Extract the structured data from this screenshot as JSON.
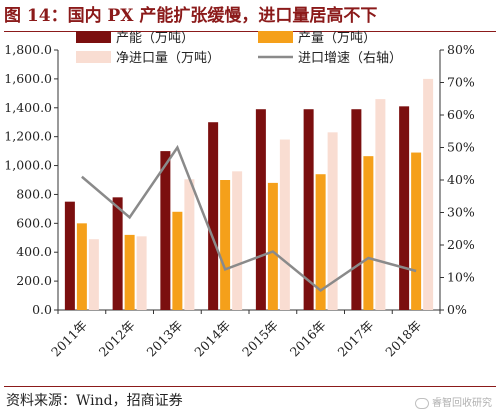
{
  "figure_title": "图 14：国内 PX 产能扩张缓慢，进口量居高不下",
  "source": "资料来源：Wind，招商证券",
  "watermark": "睿智回收研究",
  "colors": {
    "capacity": "#7b0f0f",
    "output": "#f5a01a",
    "net_import": "#f9ddd2",
    "import_growth": "#8a8a8a",
    "title": "#8b1a1a"
  },
  "chart_data": {
    "type": "bar",
    "categories": [
      "2011年",
      "2012年",
      "2013年",
      "2014年",
      "2015年",
      "2016年",
      "2017年",
      "2018年"
    ],
    "series": [
      {
        "name": "产能（万吨）",
        "type": "bar",
        "axis": "left",
        "values": [
          750,
          780,
          1100,
          1300,
          1390,
          1390,
          1390,
          1410
        ]
      },
      {
        "name": "产量（万吨）",
        "type": "bar",
        "axis": "left",
        "values": [
          600,
          520,
          680,
          900,
          880,
          940,
          1065,
          1090
        ]
      },
      {
        "name": "净进口量（万吨）",
        "type": "bar",
        "axis": "left",
        "values": [
          490,
          510,
          905,
          960,
          1180,
          1230,
          1460,
          1600
        ]
      },
      {
        "name": "进口增速（右轴）",
        "type": "line",
        "axis": "right",
        "values": [
          41,
          28.5,
          50,
          12.5,
          18,
          6,
          16,
          12
        ]
      }
    ],
    "yleft_ticks": [
      "0.0",
      "200.0",
      "400.0",
      "600.0",
      "800.0",
      "1,000.0",
      "1,200.0",
      "1,400.0",
      "1,600.0",
      "1,800.0"
    ],
    "yright_ticks": [
      "0%",
      "10%",
      "20%",
      "30%",
      "40%",
      "50%",
      "60%",
      "70%",
      "80%"
    ],
    "ylim_left": [
      0,
      1800
    ],
    "ylim_right": [
      0,
      80
    ],
    "legend_position": "top",
    "grid": false
  }
}
